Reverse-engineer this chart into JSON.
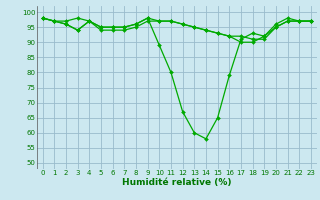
{
  "xlabel": "Humidité relative (%)",
  "background_color": "#cce8f0",
  "grid_color": "#99bbcc",
  "line_color": "#00aa00",
  "marker_color": "#00aa00",
  "xlim": [
    -0.5,
    23.5
  ],
  "ylim": [
    48,
    102
  ],
  "yticks": [
    50,
    55,
    60,
    65,
    70,
    75,
    80,
    85,
    90,
    95,
    100
  ],
  "xticks": [
    0,
    1,
    2,
    3,
    4,
    5,
    6,
    7,
    8,
    9,
    10,
    11,
    12,
    13,
    14,
    15,
    16,
    17,
    18,
    19,
    20,
    21,
    22,
    23
  ],
  "series": [
    [
      98,
      97,
      97,
      98,
      97,
      95,
      95,
      95,
      96,
      98,
      89,
      80,
      67,
      60,
      58,
      65,
      79,
      91,
      93,
      92,
      96,
      98,
      97,
      97
    ],
    [
      98,
      97,
      96,
      94,
      97,
      95,
      95,
      95,
      96,
      98,
      97,
      97,
      96,
      95,
      94,
      93,
      92,
      92,
      91,
      91,
      95,
      97,
      97,
      97
    ],
    [
      98,
      97,
      96,
      94,
      97,
      94,
      94,
      94,
      95,
      97,
      97,
      97,
      96,
      95,
      94,
      93,
      92,
      90,
      90,
      92,
      95,
      97,
      97,
      97
    ]
  ]
}
